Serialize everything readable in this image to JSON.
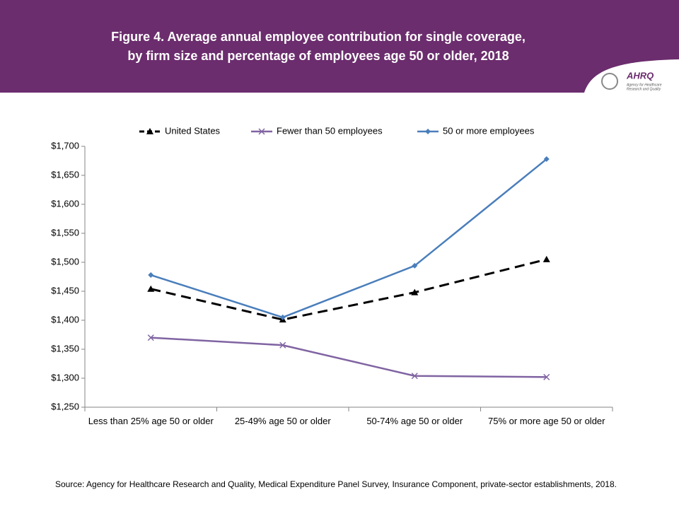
{
  "header": {
    "logo_name": "AHRQ",
    "logo_tagline_1": "Agency for Healthcare",
    "logo_tagline_2": "Research and Quality"
  },
  "chart_data": {
    "type": "line",
    "title": "Figure 4. Average annual employee contribution for single coverage,",
    "subtitle": "by firm size and percentage of employees age 50 or older, 2018",
    "categories": [
      "Less than 25% age 50 or older",
      "25-49% age 50 or older",
      "50-74% age 50 or older",
      "75% or more age 50 or older"
    ],
    "series": [
      {
        "name": "United States",
        "color": "#000000",
        "marker": "triangle",
        "dash": true,
        "values": [
          1454,
          1401,
          1448,
          1505
        ]
      },
      {
        "name": "Fewer than 50 employees",
        "color": "#8064a2",
        "marker": "x",
        "dash": false,
        "values": [
          1370,
          1357,
          1304,
          1302
        ]
      },
      {
        "name": "50 or more employees",
        "color": "#4a7ebb",
        "marker": "diamond",
        "dash": false,
        "values": [
          1478,
          1405,
          1494,
          1678
        ]
      }
    ],
    "ylim": [
      1250,
      1700
    ],
    "yticks": [
      {
        "value": 1250,
        "label": "$1,250"
      },
      {
        "value": 1300,
        "label": "$1,300"
      },
      {
        "value": 1350,
        "label": "$1,350"
      },
      {
        "value": 1400,
        "label": "$1,400"
      },
      {
        "value": 1450,
        "label": "$1,450"
      },
      {
        "value": 1500,
        "label": "$1,500"
      },
      {
        "value": 1550,
        "label": "$1,550"
      },
      {
        "value": 1600,
        "label": "$1,600"
      },
      {
        "value": 1650,
        "label": "$1,650"
      },
      {
        "value": 1700,
        "label": "$1,700"
      }
    ],
    "grid": false,
    "legend": "top",
    "source": "Source: Agency for Healthcare Research and Quality, Medical Expenditure Panel Survey, Insurance Component, private-sector establishments, 2018."
  }
}
